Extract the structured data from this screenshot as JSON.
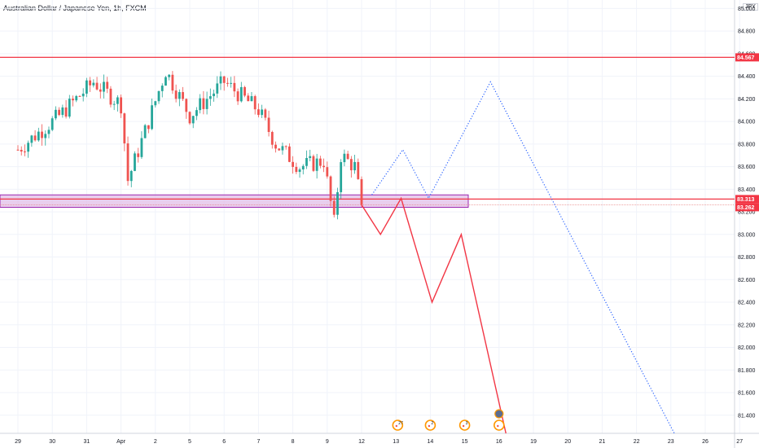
{
  "title": "Australian Dollar / Japanese Yen, 1h, FXCM",
  "currency": "JPY",
  "colors": {
    "up": "#26a69a",
    "down": "#ef5350",
    "level": "#f23645",
    "zone_fill": "#e1bee7",
    "zone_stroke": "#9c27b0",
    "bull_path": "#2962ff",
    "bear_path": "#f23645",
    "grid": "#f0f3fa"
  },
  "chart_data": {
    "type": "candlestick",
    "title": "Australian Dollar / Japanese Yen, 1h, FXCM",
    "xlabel": "",
    "ylabel": "",
    "ylim": [
      81.24,
      85.06
    ],
    "y_ticks": [
      "85.000",
      "84.800",
      "84.600",
      "84.400",
      "84.200",
      "84.000",
      "83.800",
      "83.600",
      "83.400",
      "83.200",
      "83.000",
      "82.800",
      "82.600",
      "82.400",
      "82.200",
      "82.000",
      "81.800",
      "81.600",
      "81.400"
    ],
    "x_ticks": [
      "29",
      "30",
      "31",
      "Apr",
      "2",
      "5",
      "6",
      "7",
      "8",
      "9",
      "12",
      "13",
      "14",
      "15",
      "16",
      "19",
      "20",
      "21",
      "22",
      "23",
      "26",
      "27"
    ],
    "grid": true,
    "price_levels": [
      {
        "label": "84.567",
        "value": 84.567
      },
      {
        "label": "83.313",
        "value": 83.313
      },
      {
        "label": "83.262",
        "value": 83.262
      }
    ],
    "zone": {
      "top": 83.35,
      "bottom": 83.24
    },
    "candle_path": [
      {
        "t": 0,
        "p": 83.75
      },
      {
        "t": 1.2,
        "p": 84.05
      },
      {
        "t": 2.2,
        "p": 84.35
      },
      {
        "t": 3.0,
        "p": 84.15
      },
      {
        "t": 3.2,
        "p": 83.48
      },
      {
        "t": 3.8,
        "p": 84.0
      },
      {
        "t": 4.3,
        "p": 84.45
      },
      {
        "t": 5.0,
        "p": 84.05
      },
      {
        "t": 6.0,
        "p": 84.35
      },
      {
        "t": 7.0,
        "p": 84.1
      },
      {
        "t": 7.5,
        "p": 83.8
      },
      {
        "t": 8.2,
        "p": 83.6
      },
      {
        "t": 8.9,
        "p": 83.65
      },
      {
        "t": 9.2,
        "p": 83.1
      },
      {
        "t": 9.4,
        "p": 83.7
      },
      {
        "t": 9.8,
        "p": 83.6
      },
      {
        "t": 10.0,
        "p": 83.262
      }
    ],
    "series": [
      {
        "name": "",
        "style": "dotted",
        "points": [
          {
            "t": 10.3,
            "p": 83.35
          },
          {
            "t": 11.2,
            "p": 83.75
          },
          {
            "t": 11.95,
            "p": 83.32
          },
          {
            "t": 13.75,
            "p": 84.35
          },
          {
            "t": 19.1,
            "p": 81.24
          }
        ]
      },
      {
        "name": "",
        "style": "solid",
        "points": [
          {
            "t": 10.0,
            "p": 83.262
          },
          {
            "t": 10.55,
            "p": 83.0
          },
          {
            "t": 11.15,
            "p": 83.32
          },
          {
            "t": 12.05,
            "p": 82.4
          },
          {
            "t": 12.9,
            "p": 83.0
          },
          {
            "t": 14.2,
            "p": 81.24
          }
        ]
      }
    ],
    "events": [
      {
        "label": "27",
        "t": 11.05
      },
      {
        "label": "2",
        "t": 12.0
      },
      {
        "label": "3",
        "t": 13.0
      },
      {
        "label": "",
        "t": 14.0
      }
    ]
  }
}
